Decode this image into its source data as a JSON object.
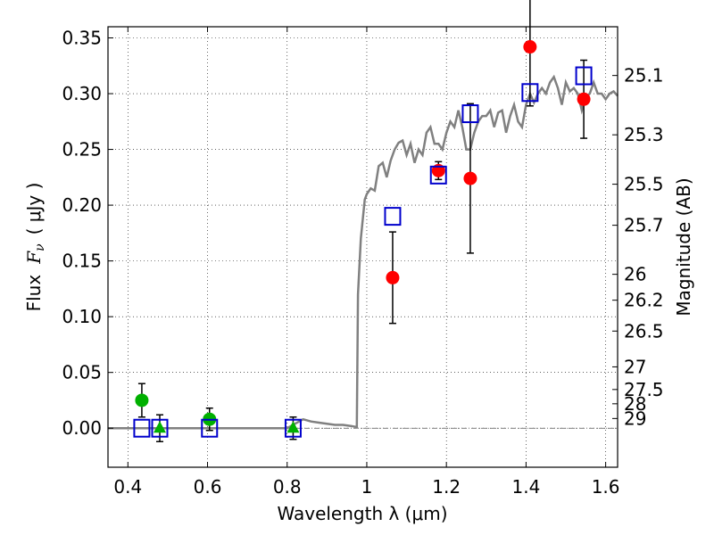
{
  "chart_data": {
    "type": "scatter",
    "xlabel": "Wavelength  λ (μm)",
    "ylabel_prefix": "Flux",
    "ylabel_symbol": "F",
    "ylabel_subscript": "ν",
    "ylabel_units": "( μJy )",
    "y2label": "Magnitude (AB)",
    "xlim": [
      0.35,
      1.63
    ],
    "ylim": [
      -0.035,
      0.36
    ],
    "xticks": [
      0.4,
      0.6,
      0.8,
      1.0,
      1.2,
      1.4,
      1.6
    ],
    "xtick_labels": [
      "0.4",
      "0.6",
      "0.8",
      "1",
      "1.2",
      "1.4",
      "1.6"
    ],
    "yticks": [
      0.0,
      0.05,
      0.1,
      0.15,
      0.2,
      0.25,
      0.3,
      0.35
    ],
    "ytick_labels": [
      "0.00",
      "0.05",
      "0.10",
      "0.15",
      "0.20",
      "0.25",
      "0.30",
      "0.35"
    ],
    "mag_ticks": [
      {
        "label": "25.1",
        "flux": 0.3163
      },
      {
        "label": "25.3",
        "flux": 0.2631
      },
      {
        "label": "25.5",
        "flux": 0.2188
      },
      {
        "label": "25.7",
        "flux": 0.182
      },
      {
        "label": "26",
        "flux": 0.138
      },
      {
        "label": "26.2",
        "flux": 0.1148
      },
      {
        "label": "26.5",
        "flux": 0.0871
      },
      {
        "label": "27",
        "flux": 0.055
      },
      {
        "label": "27.5",
        "flux": 0.0347
      },
      {
        "label": "28",
        "flux": 0.0219
      },
      {
        "label": "29",
        "flux": 0.0087
      }
    ],
    "grid": true,
    "series": [
      {
        "name": "model SED",
        "style": "line",
        "color": "#808080",
        "x": [
          0.35,
          0.4,
          0.45,
          0.5,
          0.55,
          0.6,
          0.65,
          0.7,
          0.75,
          0.8,
          0.82,
          0.84,
          0.86,
          0.88,
          0.9,
          0.92,
          0.94,
          0.96,
          0.975,
          0.978,
          0.985,
          0.995,
          1.0,
          1.01,
          1.02,
          1.03,
          1.04,
          1.05,
          1.06,
          1.07,
          1.08,
          1.09,
          1.1,
          1.11,
          1.12,
          1.13,
          1.14,
          1.15,
          1.16,
          1.17,
          1.18,
          1.19,
          1.2,
          1.21,
          1.22,
          1.23,
          1.24,
          1.25,
          1.26,
          1.27,
          1.28,
          1.29,
          1.3,
          1.31,
          1.32,
          1.33,
          1.34,
          1.35,
          1.36,
          1.37,
          1.38,
          1.39,
          1.4,
          1.41,
          1.42,
          1.43,
          1.44,
          1.45,
          1.46,
          1.47,
          1.48,
          1.49,
          1.5,
          1.51,
          1.52,
          1.53,
          1.54,
          1.55,
          1.56,
          1.57,
          1.58,
          1.59,
          1.6,
          1.61,
          1.62,
          1.63
        ],
        "y": [
          0.0,
          0.0,
          0.0,
          0.0,
          0.0,
          0.0,
          0.0,
          0.0,
          0.0,
          0.0,
          0.004,
          0.008,
          0.006,
          0.005,
          0.004,
          0.003,
          0.003,
          0.002,
          0.001,
          0.12,
          0.17,
          0.205,
          0.21,
          0.215,
          0.213,
          0.235,
          0.238,
          0.225,
          0.24,
          0.25,
          0.256,
          0.258,
          0.245,
          0.255,
          0.238,
          0.25,
          0.245,
          0.265,
          0.27,
          0.255,
          0.255,
          0.25,
          0.265,
          0.275,
          0.27,
          0.285,
          0.27,
          0.25,
          0.25,
          0.265,
          0.275,
          0.28,
          0.28,
          0.285,
          0.27,
          0.283,
          0.285,
          0.265,
          0.28,
          0.29,
          0.275,
          0.27,
          0.29,
          0.3,
          0.292,
          0.3,
          0.305,
          0.3,
          0.31,
          0.315,
          0.305,
          0.29,
          0.31,
          0.302,
          0.305,
          0.3,
          0.285,
          0.297,
          0.3,
          0.31,
          0.3,
          0.3,
          0.295,
          0.3,
          0.302,
          0.298
        ]
      },
      {
        "name": "model photometry",
        "style": "open-square",
        "color": "#0000cc",
        "x": [
          0.435,
          0.48,
          0.605,
          0.815,
          1.065,
          1.18,
          1.26,
          1.41,
          1.545
        ],
        "y": [
          0.0,
          0.0,
          0.0,
          0.0,
          0.19,
          0.227,
          0.282,
          0.301,
          0.316
        ]
      },
      {
        "name": "green detections",
        "style": "filled-circle",
        "color": "#00b000",
        "x": [
          0.435,
          0.605
        ],
        "y": [
          0.025,
          0.008
        ],
        "yerr": [
          0.015,
          0.01
        ]
      },
      {
        "name": "green upper limits",
        "style": "triangle-up",
        "color": "#00b000",
        "x": [
          0.48,
          0.815
        ],
        "y": [
          0.0,
          0.0
        ],
        "yerr": [
          0.012,
          0.01
        ]
      },
      {
        "name": "red detections",
        "style": "filled-circle",
        "color": "#ff0000",
        "x": [
          1.065,
          1.18,
          1.26,
          1.41,
          1.545
        ],
        "y": [
          0.135,
          0.231,
          0.224,
          0.342,
          0.295
        ],
        "yerr": [
          0.041,
          0.008,
          0.067,
          0.053,
          0.035
        ]
      }
    ]
  }
}
